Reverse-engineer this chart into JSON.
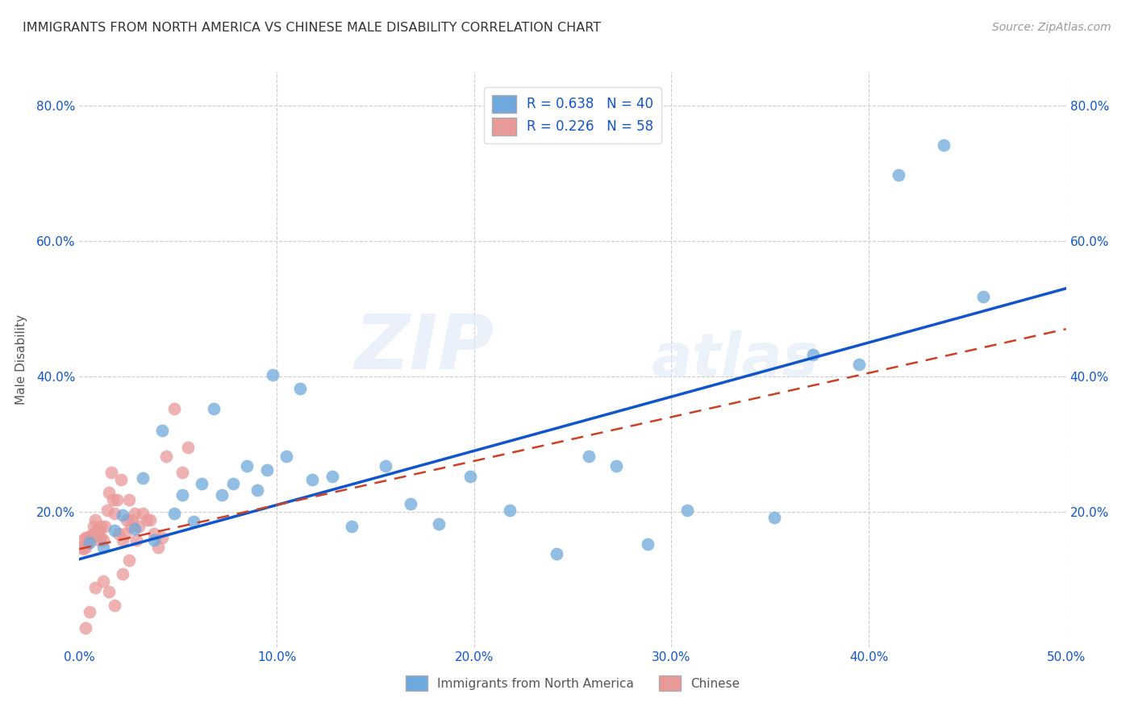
{
  "title": "IMMIGRANTS FROM NORTH AMERICA VS CHINESE MALE DISABILITY CORRELATION CHART",
  "source": "Source: ZipAtlas.com",
  "ylabel": "Male Disability",
  "xlim": [
    0.0,
    0.5
  ],
  "ylim": [
    0.0,
    0.85
  ],
  "xticks": [
    0.0,
    0.1,
    0.2,
    0.3,
    0.4,
    0.5
  ],
  "xticklabels": [
    "0.0%",
    "10.0%",
    "20.0%",
    "30.0%",
    "40.0%",
    "50.0%"
  ],
  "yticks": [
    0.0,
    0.2,
    0.4,
    0.6,
    0.8
  ],
  "yticklabels_left": [
    "",
    "",
    "20.0%",
    "40.0%",
    "60.0%",
    "80.0%"
  ],
  "yticklabels_right": [
    "",
    "20.0%",
    "40.0%",
    "60.0%",
    "80.0%"
  ],
  "legend1_r": "0.638",
  "legend1_n": "40",
  "legend2_r": "0.226",
  "legend2_n": "58",
  "legend_bottom_label1": "Immigrants from North America",
  "legend_bottom_label2": "Chinese",
  "blue_color": "#6fa8dc",
  "pink_color": "#ea9999",
  "blue_line_color": "#1155cc",
  "pink_line_color": "#cc4125",
  "watermark_zip": "ZIP",
  "watermark_atlas": "atlas",
  "blue_scatter_x": [
    0.005,
    0.012,
    0.018,
    0.022,
    0.028,
    0.032,
    0.038,
    0.042,
    0.048,
    0.052,
    0.058,
    0.062,
    0.068,
    0.072,
    0.078,
    0.085,
    0.09,
    0.095,
    0.098,
    0.105,
    0.112,
    0.118,
    0.128,
    0.138,
    0.155,
    0.168,
    0.182,
    0.198,
    0.218,
    0.242,
    0.258,
    0.272,
    0.288,
    0.308,
    0.352,
    0.372,
    0.395,
    0.415,
    0.438,
    0.458
  ],
  "blue_scatter_y": [
    0.155,
    0.148,
    0.172,
    0.195,
    0.175,
    0.25,
    0.158,
    0.32,
    0.198,
    0.225,
    0.185,
    0.242,
    0.352,
    0.225,
    0.242,
    0.268,
    0.232,
    0.262,
    0.402,
    0.282,
    0.382,
    0.248,
    0.252,
    0.178,
    0.268,
    0.212,
    0.182,
    0.252,
    0.202,
    0.138,
    0.282,
    0.268,
    0.152,
    0.202,
    0.192,
    0.432,
    0.418,
    0.698,
    0.742,
    0.518
  ],
  "pink_scatter_x": [
    0.001,
    0.002,
    0.002,
    0.003,
    0.003,
    0.004,
    0.004,
    0.005,
    0.005,
    0.006,
    0.006,
    0.007,
    0.007,
    0.008,
    0.008,
    0.009,
    0.009,
    0.01,
    0.01,
    0.011,
    0.011,
    0.012,
    0.013,
    0.014,
    0.015,
    0.016,
    0.017,
    0.018,
    0.019,
    0.02,
    0.021,
    0.022,
    0.023,
    0.024,
    0.025,
    0.026,
    0.027,
    0.028,
    0.029,
    0.03,
    0.032,
    0.034,
    0.036,
    0.038,
    0.04,
    0.042,
    0.044,
    0.048,
    0.052,
    0.055,
    0.005,
    0.008,
    0.012,
    0.015,
    0.018,
    0.022,
    0.025,
    0.003
  ],
  "pink_scatter_y": [
    0.148,
    0.145,
    0.158,
    0.148,
    0.162,
    0.152,
    0.162,
    0.158,
    0.162,
    0.165,
    0.162,
    0.168,
    0.178,
    0.188,
    0.168,
    0.172,
    0.168,
    0.172,
    0.158,
    0.178,
    0.162,
    0.158,
    0.178,
    0.202,
    0.228,
    0.258,
    0.218,
    0.198,
    0.218,
    0.168,
    0.248,
    0.158,
    0.168,
    0.188,
    0.218,
    0.178,
    0.188,
    0.198,
    0.158,
    0.178,
    0.198,
    0.188,
    0.188,
    0.168,
    0.148,
    0.162,
    0.282,
    0.352,
    0.258,
    0.295,
    0.052,
    0.088,
    0.098,
    0.082,
    0.062,
    0.108,
    0.128,
    0.028
  ],
  "blue_line_x0": 0.0,
  "blue_line_y0": 0.13,
  "blue_line_x1": 0.5,
  "blue_line_y1": 0.53,
  "pink_line_x0": 0.0,
  "pink_line_y0": 0.145,
  "pink_line_x1": 0.5,
  "pink_line_y1": 0.47
}
